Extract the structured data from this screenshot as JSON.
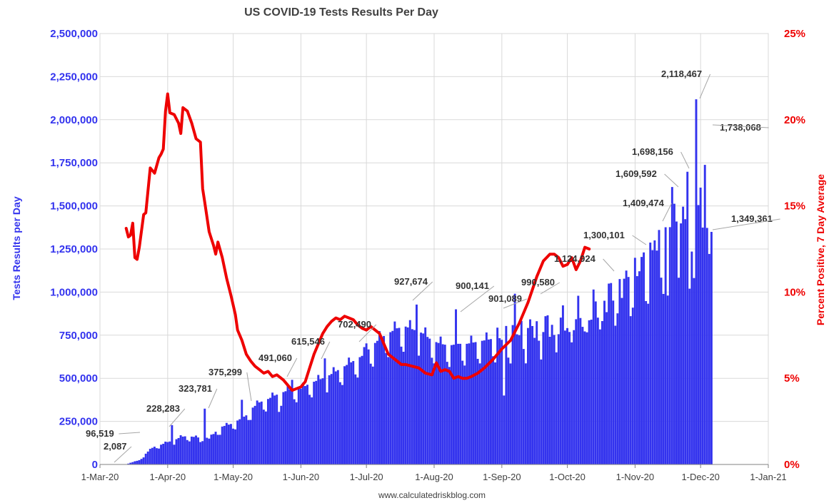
{
  "chart_data": {
    "type": "bar",
    "title": "US COVID-19 Tests Results Per Day",
    "source": "www.calculatedriskblog.com",
    "ylabel": "Tests Results per Day",
    "y2label": "Percent Positive, 7 Day Average",
    "ylim": [
      0,
      2500000
    ],
    "y2lim": [
      0,
      25
    ],
    "yticks": [
      "0",
      "250,000",
      "500,000",
      "750,000",
      "1,000,000",
      "1,250,000",
      "1,500,000",
      "1,750,000",
      "2,000,000",
      "2,250,000",
      "2,500,000"
    ],
    "y2ticks": [
      "0%",
      "5%",
      "10%",
      "15%",
      "20%",
      "25%"
    ],
    "xticks": [
      "1-Mar-20",
      "1-Apr-20",
      "1-May-20",
      "1-Jun-20",
      "1-Jul-20",
      "1-Aug-20",
      "1-Sep-20",
      "1-Oct-20",
      "1-Nov-20",
      "1-Dec-20",
      "1-Jan-21"
    ],
    "x_range_days": [
      0,
      306
    ],
    "series": [
      {
        "name": "Tests Results per Day",
        "color": "#3333ee",
        "start_day": 12,
        "anchors": [
          [
            12,
            2087
          ],
          [
            14,
            10000
          ],
          [
            18,
            25000
          ],
          [
            20,
            50000
          ],
          [
            22,
            75000
          ],
          [
            24,
            96519
          ],
          [
            26,
            110000
          ],
          [
            28,
            115000
          ],
          [
            31,
            130000
          ],
          [
            34,
            140000
          ],
          [
            37,
            160000
          ],
          [
            40,
            165000
          ],
          [
            43,
            160000
          ],
          [
            46,
            155000
          ],
          [
            48,
            160000
          ],
          [
            50,
            150000
          ],
          [
            53,
            190000
          ],
          [
            56,
            220000
          ],
          [
            60,
            235000
          ],
          [
            63,
            255000
          ],
          [
            67,
            285000
          ],
          [
            70,
            330000
          ],
          [
            73,
            360000
          ],
          [
            77,
            380000
          ],
          [
            80,
            400000
          ],
          [
            84,
            420000
          ],
          [
            88,
            440000
          ],
          [
            92,
            440000
          ],
          [
            96,
            470000
          ],
          [
            100,
            490000
          ],
          [
            104,
            510000
          ],
          [
            108,
            540000
          ],
          [
            112,
            570000
          ],
          [
            116,
            600000
          ],
          [
            120,
            630000
          ],
          [
            124,
            680000
          ],
          [
            128,
            730000
          ],
          [
            132,
            760000
          ],
          [
            136,
            790000
          ],
          [
            140,
            800000
          ],
          [
            144,
            780000
          ],
          [
            148,
            760000
          ],
          [
            152,
            720000
          ],
          [
            156,
            700000
          ],
          [
            160,
            690000
          ],
          [
            164,
            700000
          ],
          [
            168,
            700000
          ],
          [
            172,
            710000
          ],
          [
            176,
            720000
          ],
          [
            180,
            730000
          ],
          [
            184,
            740000
          ],
          [
            188,
            760000
          ],
          [
            192,
            770000
          ],
          [
            196,
            780000
          ],
          [
            200,
            790000
          ],
          [
            204,
            800000
          ],
          [
            208,
            810000
          ],
          [
            212,
            820000
          ],
          [
            216,
            840000
          ],
          [
            220,
            860000
          ],
          [
            224,
            880000
          ],
          [
            228,
            920000
          ],
          [
            232,
            960000
          ],
          [
            236,
            1000000
          ],
          [
            240,
            1050000
          ],
          [
            244,
            1100000
          ],
          [
            248,
            1150000
          ],
          [
            252,
            1200000
          ],
          [
            256,
            1260000
          ],
          [
            260,
            1350000
          ],
          [
            264,
            1440000
          ],
          [
            266,
            1420000
          ],
          [
            268,
            1350000
          ],
          [
            270,
            1300000
          ],
          [
            272,
            1380000
          ],
          [
            274,
            1420000
          ],
          [
            276,
            1480000
          ]
        ],
        "spikes": [
          [
            12,
            2087
          ],
          [
            24,
            96519
          ],
          [
            33,
            228283
          ],
          [
            48,
            323781
          ],
          [
            65,
            375299
          ],
          [
            88,
            491060
          ],
          [
            103,
            615546
          ],
          [
            122,
            702490
          ],
          [
            145,
            927674
          ],
          [
            163,
            900141
          ],
          [
            185,
            901089
          ],
          [
            190,
            990580
          ],
          [
            241,
            1124924
          ],
          [
            254,
            1300101
          ],
          [
            264,
            1409474
          ],
          [
            262,
            1609592
          ],
          [
            269,
            1698156
          ],
          [
            273,
            2118467
          ],
          [
            277,
            1738068
          ],
          [
            280,
            1349361
          ]
        ],
        "dips": [
          [
            46,
            130000
          ],
          [
            82,
            305000
          ],
          [
            185,
            400000
          ],
          [
            260,
            980000
          ],
          [
            270,
            1020000
          ]
        ]
      },
      {
        "name": "Percent Positive, 7 Day Average",
        "type": "line",
        "color": "#ee0000",
        "points": [
          [
            12,
            13.7
          ],
          [
            13,
            13.2
          ],
          [
            14,
            13.3
          ],
          [
            15,
            14.0
          ],
          [
            16,
            12.0
          ],
          [
            17,
            11.9
          ],
          [
            18,
            12.6
          ],
          [
            20,
            14.5
          ],
          [
            21,
            14.6
          ],
          [
            23,
            17.2
          ],
          [
            25,
            16.9
          ],
          [
            27,
            17.8
          ],
          [
            28,
            18.0
          ],
          [
            29,
            18.3
          ],
          [
            30,
            20.5
          ],
          [
            31,
            21.5
          ],
          [
            32,
            20.4
          ],
          [
            34,
            20.3
          ],
          [
            36,
            19.8
          ],
          [
            37,
            19.2
          ],
          [
            38,
            20.7
          ],
          [
            40,
            20.5
          ],
          [
            42,
            19.8
          ],
          [
            44,
            18.9
          ],
          [
            46,
            18.7
          ],
          [
            47,
            16.0
          ],
          [
            48,
            15.2
          ],
          [
            50,
            13.5
          ],
          [
            52,
            12.7
          ],
          [
            53,
            12.2
          ],
          [
            54,
            12.9
          ],
          [
            56,
            12.0
          ],
          [
            58,
            10.8
          ],
          [
            60,
            9.8
          ],
          [
            62,
            8.7
          ],
          [
            63,
            7.8
          ],
          [
            65,
            7.2
          ],
          [
            67,
            6.4
          ],
          [
            69,
            6.0
          ],
          [
            71,
            5.7
          ],
          [
            73,
            5.5
          ],
          [
            75,
            5.3
          ],
          [
            77,
            5.4
          ],
          [
            79,
            5.1
          ],
          [
            81,
            5.2
          ],
          [
            84,
            4.9
          ],
          [
            86,
            4.6
          ],
          [
            88,
            4.3
          ],
          [
            90,
            4.4
          ],
          [
            92,
            4.5
          ],
          [
            94,
            4.8
          ],
          [
            96,
            5.6
          ],
          [
            98,
            6.4
          ],
          [
            100,
            7.0
          ],
          [
            102,
            7.6
          ],
          [
            104,
            8.0
          ],
          [
            106,
            8.3
          ],
          [
            108,
            8.5
          ],
          [
            110,
            8.4
          ],
          [
            112,
            8.6
          ],
          [
            114,
            8.5
          ],
          [
            116,
            8.4
          ],
          [
            118,
            8.1
          ],
          [
            120,
            7.9
          ],
          [
            122,
            7.8
          ],
          [
            124,
            8.0
          ],
          [
            126,
            7.8
          ],
          [
            128,
            7.6
          ],
          [
            130,
            7.0
          ],
          [
            132,
            6.4
          ],
          [
            134,
            6.2
          ],
          [
            136,
            6.0
          ],
          [
            138,
            5.8
          ],
          [
            140,
            5.8
          ],
          [
            143,
            5.7
          ],
          [
            146,
            5.6
          ],
          [
            149,
            5.3
          ],
          [
            152,
            5.2
          ],
          [
            154,
            5.9
          ],
          [
            156,
            5.4
          ],
          [
            158,
            5.5
          ],
          [
            160,
            5.4
          ],
          [
            162,
            5.0
          ],
          [
            164,
            5.1
          ],
          [
            166,
            5.0
          ],
          [
            168,
            5.0
          ],
          [
            170,
            5.1
          ],
          [
            173,
            5.3
          ],
          [
            176,
            5.6
          ],
          [
            180,
            6.1
          ],
          [
            184,
            6.7
          ],
          [
            188,
            7.2
          ],
          [
            192,
            8.2
          ],
          [
            196,
            9.4
          ],
          [
            200,
            10.9
          ],
          [
            203,
            11.8
          ],
          [
            206,
            12.2
          ],
          [
            208,
            12.2
          ],
          [
            210,
            12.0
          ],
          [
            212,
            11.5
          ],
          [
            214,
            11.6
          ],
          [
            216,
            12.0
          ],
          [
            218,
            11.3
          ],
          [
            220,
            11.8
          ],
          [
            222,
            12.6
          ],
          [
            224,
            12.5
          ]
        ]
      }
    ],
    "annotations": [
      {
        "label": "2,087",
        "day": 12,
        "value": 2087
      },
      {
        "label": "96,519",
        "day": 24,
        "value": 96519
      },
      {
        "label": "228,283",
        "day": 33,
        "value": 228283
      },
      {
        "label": "323,781",
        "day": 48,
        "value": 323781
      },
      {
        "label": "375,299",
        "day": 65,
        "value": 375299
      },
      {
        "label": "491,060",
        "day": 88,
        "value": 491060
      },
      {
        "label": "615,546",
        "day": 103,
        "value": 615546
      },
      {
        "label": "702,490",
        "day": 122,
        "value": 702490
      },
      {
        "label": "927,674",
        "day": 145,
        "value": 927674
      },
      {
        "label": "900,141",
        "day": 163,
        "value": 900141
      },
      {
        "label": "901,089",
        "day": 185,
        "value": 901089
      },
      {
        "label": "990,580",
        "day": 190,
        "value": 990580
      },
      {
        "label": "1,124,924",
        "day": 241,
        "value": 1124924
      },
      {
        "label": "1,300,101",
        "day": 254,
        "value": 1300101
      },
      {
        "label": "1,409,474",
        "day": 264,
        "value": 1409474
      },
      {
        "label": "1,609,592",
        "day": 262,
        "value": 1609592
      },
      {
        "label": "1,698,156",
        "day": 269,
        "value": 1698156
      },
      {
        "label": "2,118,467",
        "day": 273,
        "value": 2118467
      },
      {
        "label": "1,738,068",
        "day": 277,
        "value": 1738068
      },
      {
        "label": "1,349,361",
        "day": 280,
        "value": 1349361
      }
    ]
  }
}
